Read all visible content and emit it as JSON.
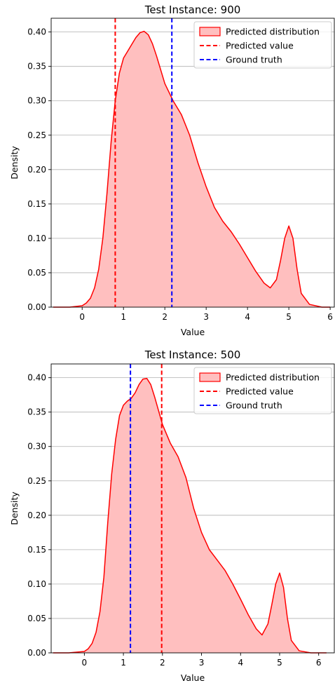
{
  "chart_data": [
    {
      "type": "area",
      "title": "Test Instance: 900",
      "xlabel": "Value",
      "ylabel": "Density",
      "xlim": [
        -0.75,
        6.1
      ],
      "ylim": [
        0,
        0.42
      ],
      "xticks": [
        0,
        1,
        2,
        3,
        4,
        5,
        6
      ],
      "yticks": [
        0.0,
        0.05,
        0.1,
        0.15,
        0.2,
        0.25,
        0.3,
        0.35,
        0.4
      ],
      "ytick_labels": [
        "0.00",
        "0.05",
        "0.10",
        "0.15",
        "0.20",
        "0.25",
        "0.30",
        "0.35",
        "0.40"
      ],
      "grid": "horizontal",
      "legend_position": "top-right",
      "series": [
        {
          "name": "Predicted distribution",
          "color": "#ff0000",
          "fill": "#ffbfbf",
          "x": [
            -0.7,
            -0.3,
            0.0,
            0.1,
            0.2,
            0.3,
            0.4,
            0.5,
            0.6,
            0.7,
            0.8,
            0.9,
            1.0,
            1.1,
            1.2,
            1.3,
            1.4,
            1.5,
            1.6,
            1.7,
            1.8,
            1.9,
            2.0,
            2.2,
            2.4,
            2.6,
            2.8,
            3.0,
            3.2,
            3.4,
            3.6,
            3.8,
            4.0,
            4.2,
            4.4,
            4.55,
            4.7,
            4.8,
            4.9,
            5.0,
            5.1,
            5.2,
            5.3,
            5.5,
            5.8,
            6.0
          ],
          "y": [
            0.0,
            0.0,
            0.002,
            0.006,
            0.013,
            0.028,
            0.055,
            0.1,
            0.165,
            0.24,
            0.3,
            0.34,
            0.362,
            0.372,
            0.382,
            0.392,
            0.399,
            0.401,
            0.396,
            0.383,
            0.365,
            0.345,
            0.325,
            0.3,
            0.28,
            0.25,
            0.21,
            0.175,
            0.145,
            0.125,
            0.11,
            0.092,
            0.072,
            0.052,
            0.035,
            0.028,
            0.04,
            0.068,
            0.1,
            0.118,
            0.1,
            0.055,
            0.02,
            0.004,
            0.0,
            0.0
          ]
        }
      ],
      "vlines": [
        {
          "name": "Predicted value",
          "x": 0.8,
          "color": "#ff0000"
        },
        {
          "name": "Ground truth",
          "x": 2.17,
          "color": "#0000ff"
        }
      ]
    },
    {
      "type": "area",
      "title": "Test Instance: 500",
      "xlabel": "Value",
      "ylabel": "Density",
      "xlim": [
        -0.85,
        6.4
      ],
      "ylim": [
        0,
        0.42
      ],
      "xticks": [
        0,
        1,
        2,
        3,
        4,
        5,
        6
      ],
      "yticks": [
        0.0,
        0.05,
        0.1,
        0.15,
        0.2,
        0.25,
        0.3,
        0.35,
        0.4
      ],
      "ytick_labels": [
        "0.00",
        "0.05",
        "0.10",
        "0.15",
        "0.20",
        "0.25",
        "0.30",
        "0.35",
        "0.40"
      ],
      "grid": "horizontal",
      "legend_position": "top-right",
      "series": [
        {
          "name": "Predicted distribution",
          "color": "#ff0000",
          "fill": "#ffbfbf",
          "x": [
            -0.8,
            -0.4,
            0.0,
            0.1,
            0.2,
            0.3,
            0.4,
            0.5,
            0.6,
            0.7,
            0.8,
            0.9,
            1.0,
            1.1,
            1.2,
            1.3,
            1.4,
            1.5,
            1.6,
            1.7,
            1.8,
            1.9,
            2.0,
            2.2,
            2.4,
            2.6,
            2.8,
            3.0,
            3.2,
            3.4,
            3.6,
            3.8,
            4.0,
            4.2,
            4.4,
            4.55,
            4.7,
            4.8,
            4.9,
            5.0,
            5.1,
            5.2,
            5.3,
            5.5,
            5.8,
            6.2
          ],
          "y": [
            0.0,
            0.0,
            0.002,
            0.006,
            0.014,
            0.03,
            0.06,
            0.11,
            0.19,
            0.26,
            0.31,
            0.345,
            0.36,
            0.366,
            0.37,
            0.378,
            0.39,
            0.398,
            0.399,
            0.39,
            0.372,
            0.352,
            0.332,
            0.305,
            0.285,
            0.255,
            0.21,
            0.175,
            0.15,
            0.135,
            0.12,
            0.1,
            0.078,
            0.055,
            0.035,
            0.026,
            0.042,
            0.07,
            0.1,
            0.116,
            0.095,
            0.05,
            0.018,
            0.003,
            0.0,
            0.0
          ]
        }
      ],
      "vlines": [
        {
          "name": "Ground truth",
          "x": 1.18,
          "color": "#0000ff"
        },
        {
          "name": "Predicted value",
          "x": 1.98,
          "color": "#ff0000"
        }
      ]
    }
  ],
  "legend": {
    "distribution_label": "Predicted distribution",
    "predicted_label": "Predicted value",
    "truth_label": "Ground truth"
  }
}
